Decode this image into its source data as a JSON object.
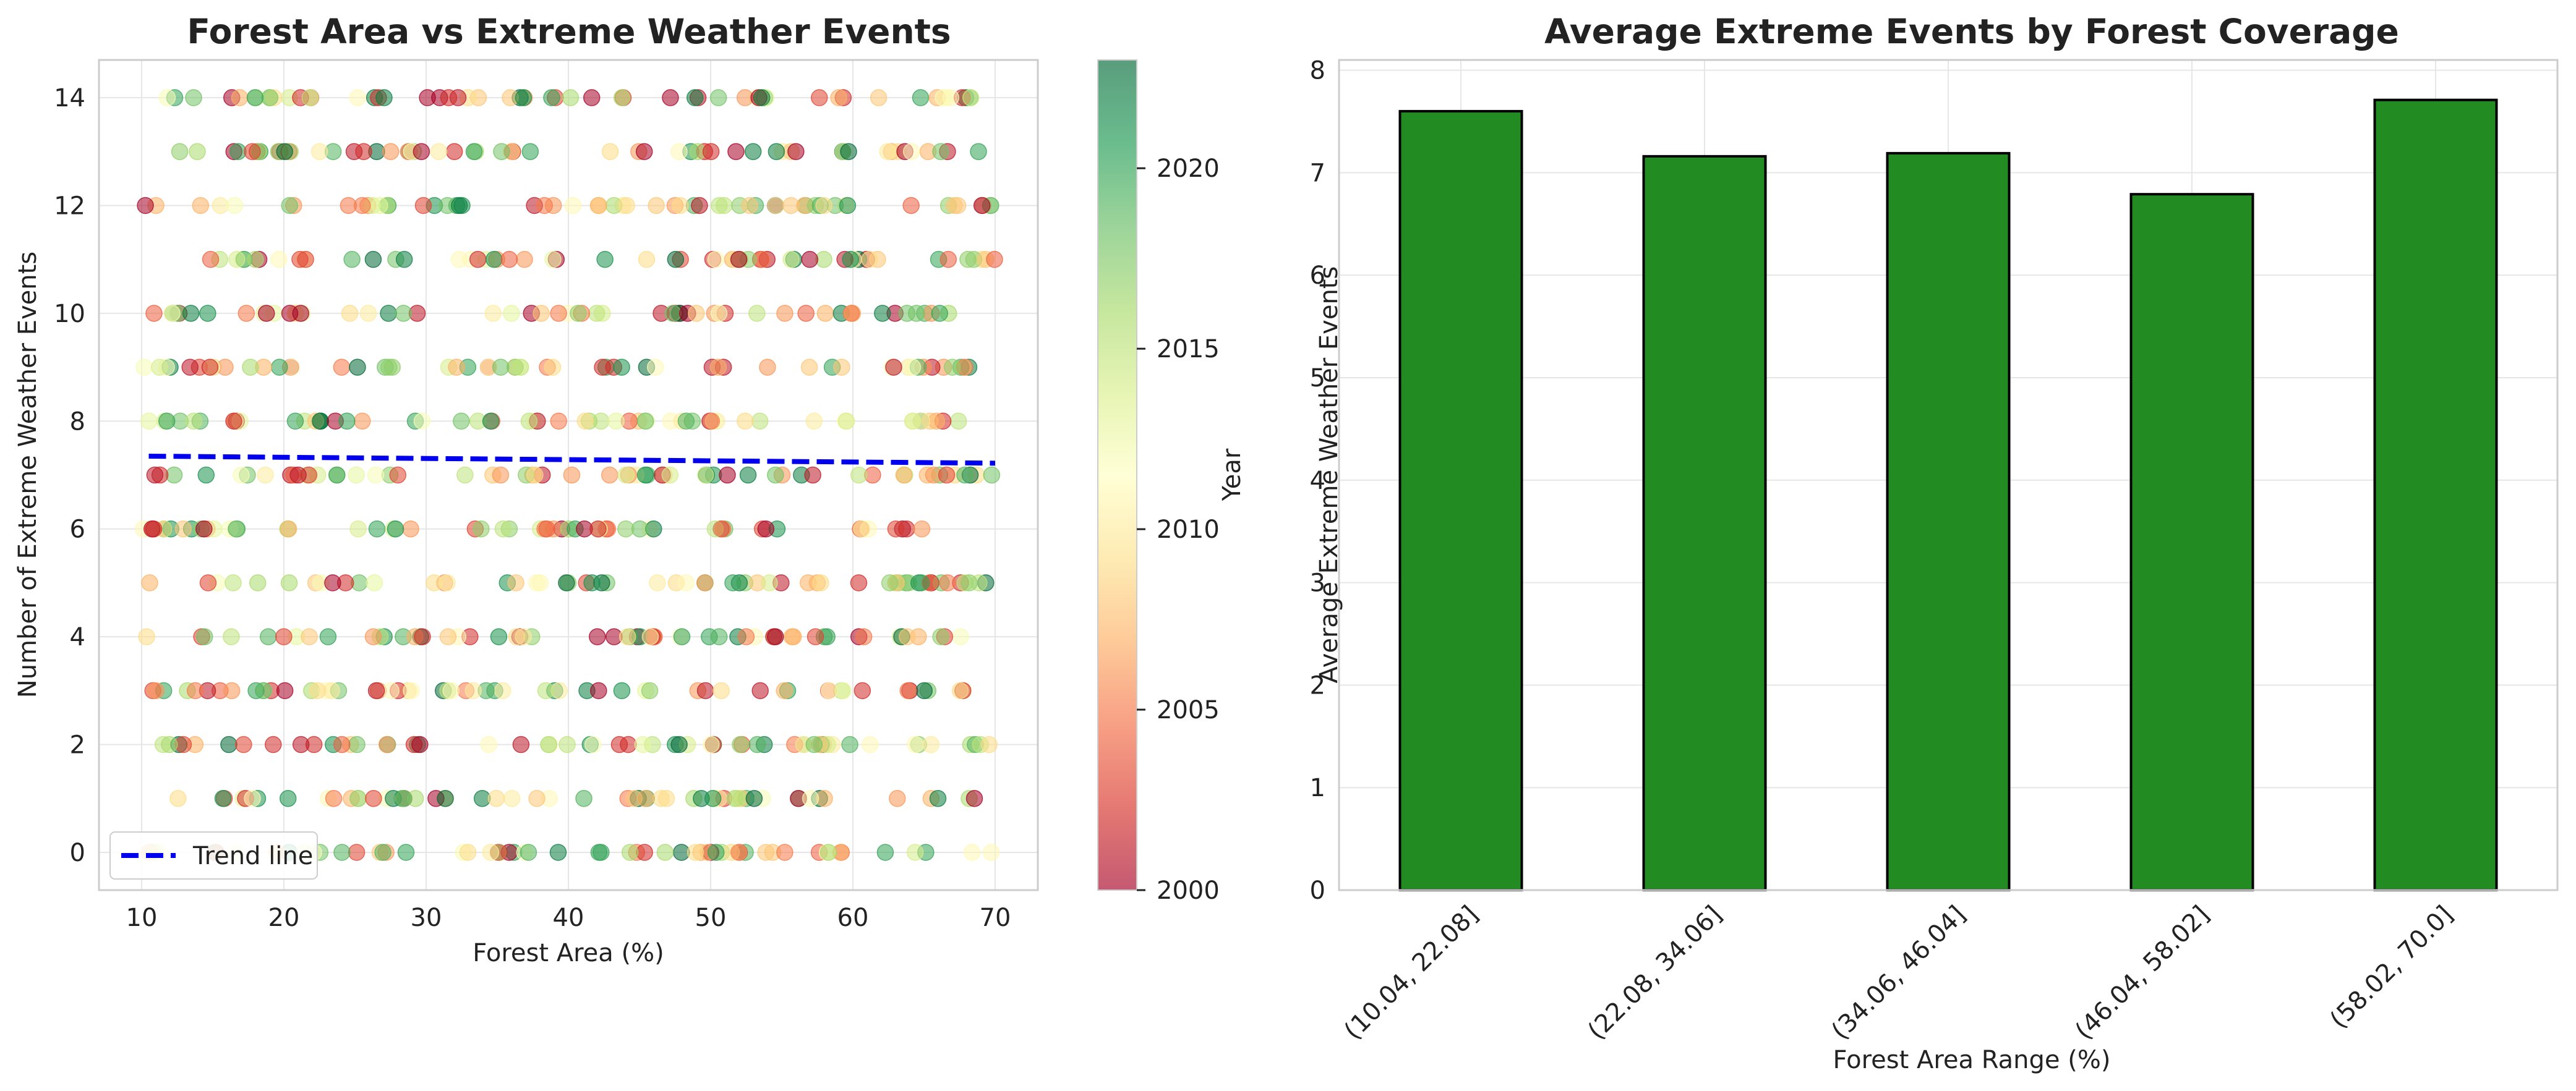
{
  "chart_data": [
    {
      "type": "scatter",
      "title": "Forest Area vs Extreme Weather Events",
      "xlabel": "Forest Area (%)",
      "ylabel": "Number of Extreme Weather Events",
      "xlim": [
        7,
        73
      ],
      "ylim": [
        -0.7,
        14.7
      ],
      "xticks": [
        10,
        20,
        30,
        40,
        50,
        60,
        70
      ],
      "yticks": [
        0,
        2,
        4,
        6,
        8,
        10,
        12,
        14
      ],
      "grid": true,
      "colormap": "RdYlGn",
      "point_alpha": 0.55,
      "color_variable": {
        "label": "Year",
        "range": [
          2000,
          2023
        ],
        "ticks": [
          2000,
          2005,
          2010,
          2015,
          2020
        ]
      },
      "event_levels": [
        0,
        1,
        2,
        3,
        4,
        5,
        6,
        7,
        8,
        9,
        10,
        11,
        12,
        13,
        14
      ],
      "forest_range": [
        10,
        70
      ],
      "n_points_per_level": 58,
      "trend_line": {
        "label": "Trend line",
        "x": [
          10.5,
          70
        ],
        "y": [
          7.35,
          7.22
        ],
        "color": "#0000ee",
        "style": "dashed"
      },
      "legend_placement": "lower-left"
    },
    {
      "type": "bar",
      "title": "Average Extreme Events by Forest Coverage",
      "xlabel": "Forest Area Range (%)",
      "ylabel": "Average Extreme Weather Events",
      "categories": [
        "(10.04, 22.08]",
        "(22.08, 34.06]",
        "(34.06, 46.04]",
        "(46.04, 58.02]",
        "(58.02, 70.0]"
      ],
      "values": [
        7.6,
        7.16,
        7.19,
        6.79,
        7.71
      ],
      "ylim": [
        0,
        8.1
      ],
      "yticks": [
        0,
        1,
        2,
        3,
        4,
        5,
        6,
        7,
        8
      ],
      "grid": true,
      "bar_color": "#228b22",
      "edge_color": "#000000"
    }
  ]
}
